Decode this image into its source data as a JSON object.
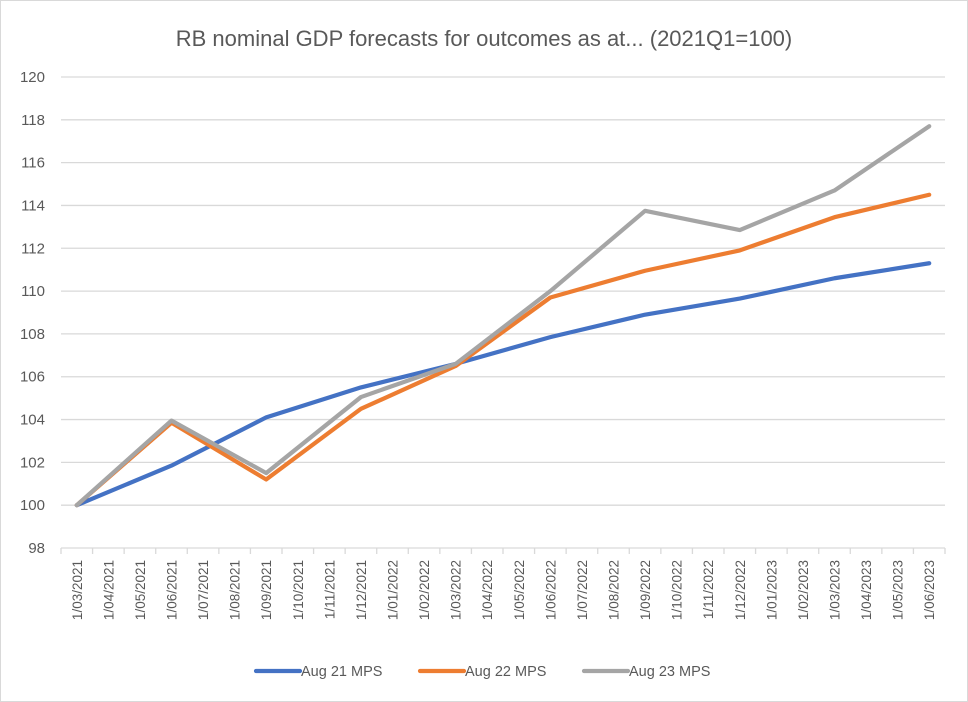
{
  "chart_data": {
    "type": "line",
    "title": "RB nominal GDP forecasts for outcomes as at... (2021Q1=100)",
    "xlabel": "",
    "ylabel": "",
    "ylim": [
      98,
      120
    ],
    "yticks": [
      "98",
      "100",
      "102",
      "104",
      "106",
      "108",
      "110",
      "112",
      "114",
      "116",
      "118",
      "120"
    ],
    "grid": true,
    "legend_position": "bottom",
    "categories": [
      "1/03/2021",
      "1/04/2021",
      "1/05/2021",
      "1/06/2021",
      "1/07/2021",
      "1/08/2021",
      "1/09/2021",
      "1/10/2021",
      "1/11/2021",
      "1/12/2021",
      "1/01/2022",
      "1/02/2022",
      "1/03/2022",
      "1/04/2022",
      "1/05/2022",
      "1/06/2022",
      "1/07/2022",
      "1/08/2022",
      "1/09/2022",
      "1/10/2022",
      "1/11/2022",
      "1/12/2022",
      "1/01/2023",
      "1/02/2023",
      "1/03/2023",
      "1/04/2023",
      "1/05/2023",
      "1/06/2023"
    ],
    "x": [
      "1/03/2021",
      "1/06/2021",
      "1/09/2021",
      "1/12/2021",
      "1/03/2022",
      "1/06/2022",
      "1/09/2022",
      "1/12/2022",
      "1/03/2023",
      "1/06/2023"
    ],
    "series": [
      {
        "name": "Aug 21 MPS",
        "color": "#4472c4",
        "values": [
          100.0,
          101.85,
          104.1,
          105.5,
          106.6,
          107.85,
          108.9,
          109.65,
          110.6,
          111.3
        ]
      },
      {
        "name": "Aug 22 MPS",
        "color": "#ed7d31",
        "values": [
          100.0,
          103.85,
          101.2,
          104.5,
          106.5,
          109.7,
          110.95,
          111.9,
          113.45,
          114.5
        ]
      },
      {
        "name": "Aug 23 MPS",
        "color": "#a5a5a5",
        "values": [
          100.0,
          103.95,
          101.5,
          105.05,
          106.6,
          110.0,
          113.75,
          112.85,
          114.7,
          117.7
        ]
      }
    ]
  }
}
